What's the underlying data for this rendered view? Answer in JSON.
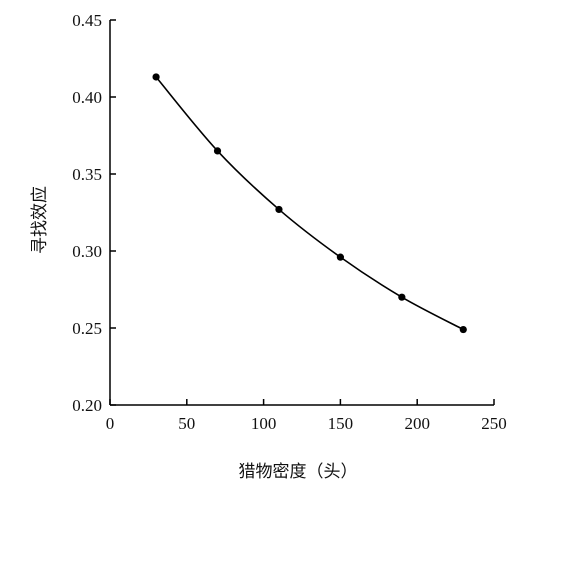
{
  "chart_data": {
    "type": "line",
    "title": "",
    "xlabel": "猎物密度（头）",
    "ylabel": "寻找效应",
    "xlim": [
      0,
      250
    ],
    "ylim": [
      0.2,
      0.45
    ],
    "x_ticks": [
      "0",
      "50",
      "100",
      "150",
      "200",
      "250"
    ],
    "y_ticks": [
      "0.20",
      "0.25",
      "0.30",
      "0.35",
      "0.40",
      "0.45"
    ],
    "grid": false,
    "legend": "none",
    "series": [
      {
        "x": [
          30,
          70,
          110,
          150,
          190,
          230
        ],
        "y": [
          0.413,
          0.365,
          0.327,
          0.296,
          0.27,
          0.249
        ],
        "marker": "circle",
        "color": "#000000"
      }
    ]
  }
}
